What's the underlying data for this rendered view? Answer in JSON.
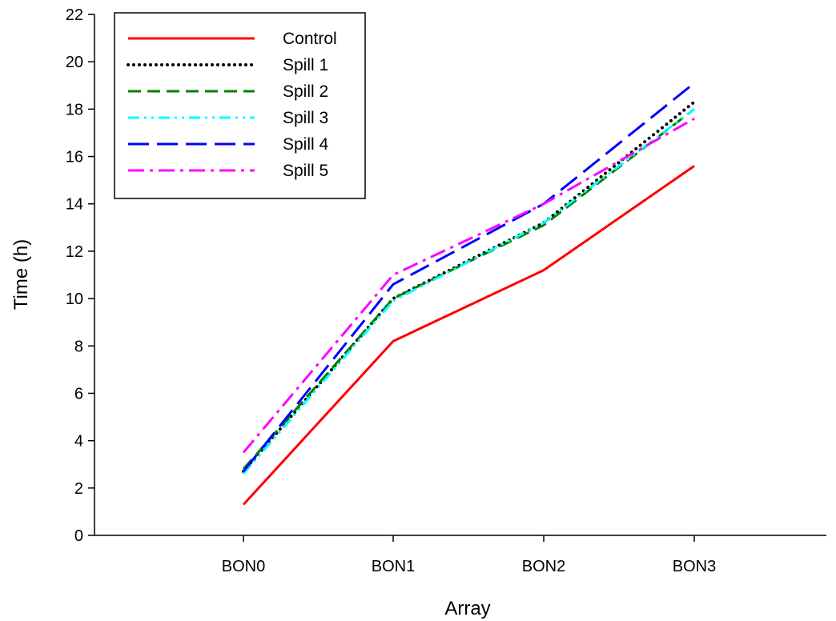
{
  "chart_data": {
    "type": "line",
    "title": "",
    "xlabel": "Array",
    "ylabel": "Time (h)",
    "categories": [
      "BON0",
      "BON1",
      "BON2",
      "BON3"
    ],
    "ylim": [
      0,
      22
    ],
    "yticks": [
      0,
      2,
      4,
      6,
      8,
      10,
      12,
      14,
      16,
      18,
      20,
      22
    ],
    "grid": false,
    "legend_position": "top-left",
    "series": [
      {
        "name": "Control",
        "values": [
          1.3,
          8.2,
          11.2,
          15.6
        ],
        "color": "#ff0000",
        "dash": "solid"
      },
      {
        "name": "Spill 1",
        "values": [
          2.7,
          10.0,
          13.2,
          18.3
        ],
        "color": "#000000",
        "dash": "dotted"
      },
      {
        "name": "Spill 2",
        "values": [
          2.8,
          10.0,
          13.1,
          18.0
        ],
        "color": "#007f00",
        "dash": "dashed"
      },
      {
        "name": "Spill 3",
        "values": [
          2.6,
          9.9,
          13.2,
          18.0
        ],
        "color": "#00ffff",
        "dash": "dashdotdot"
      },
      {
        "name": "Spill 4",
        "values": [
          2.7,
          10.6,
          14.0,
          19.1
        ],
        "color": "#0000ff",
        "dash": "longdash"
      },
      {
        "name": "Spill 5",
        "values": [
          3.5,
          11.0,
          14.0,
          17.6
        ],
        "color": "#ff00ff",
        "dash": "dashdot"
      }
    ]
  }
}
